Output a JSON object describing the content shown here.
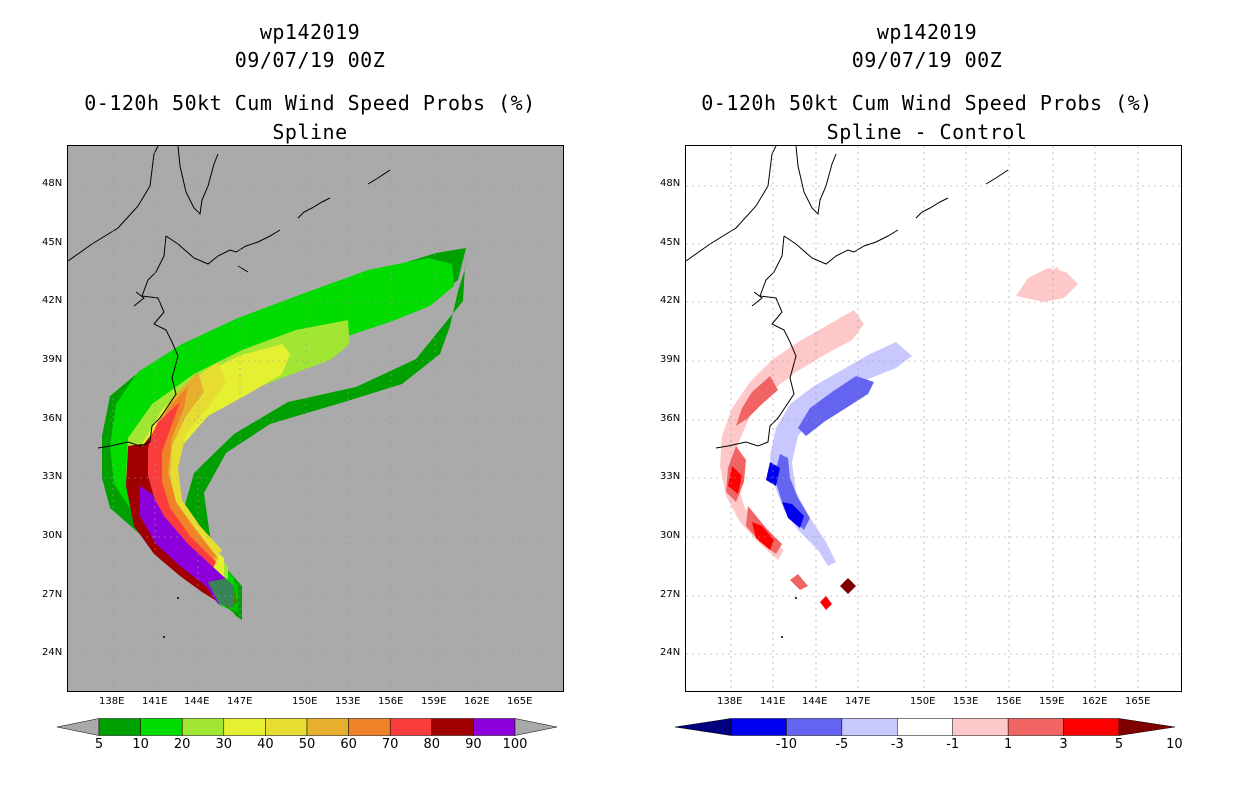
{
  "left_panel": {
    "title_lines": [
      "wp142019",
      "09/07/19 00Z",
      "0-120h 50kt Cum Wind Speed Probs (%)",
      "Spline"
    ],
    "colorbar": {
      "labels": [
        "5",
        "10",
        "20",
        "30",
        "40",
        "50",
        "60",
        "70",
        "80",
        "90",
        "100"
      ],
      "colors": [
        "#a9a9a9",
        "#00a000",
        "#00dc00",
        "#a0e632",
        "#e6f032",
        "#e6dc32",
        "#e6af2d",
        "#f08228",
        "#fa3c3c",
        "#a00000",
        "#8c00dc",
        "#a9a9a9"
      ]
    },
    "background_color": "#aaaaaa"
  },
  "right_panel": {
    "title_lines": [
      "wp142019",
      "09/07/19 00Z",
      "0-120h 50kt Cum Wind Speed Probs (%)",
      "Spline - Control"
    ],
    "colorbar": {
      "labels": [
        "-10",
        "-5",
        "-3",
        "-1",
        "1",
        "3",
        "5",
        "10"
      ],
      "colors": [
        "#000080",
        "#0000f0",
        "#6464f0",
        "#c8c8ff",
        "#ffffff",
        "#ffc8c8",
        "#f06464",
        "#ff0000",
        "#800000"
      ]
    },
    "background_color": "#ffffff"
  },
  "axes": {
    "lat_labels": [
      "48N",
      "45N",
      "42N",
      "39N",
      "36N",
      "33N",
      "30N",
      "27N",
      "24N"
    ],
    "lon_labels": [
      "138E",
      "141E",
      "144E",
      "147E",
      "150E",
      "153E",
      "156E",
      "159E",
      "162E",
      "165E"
    ]
  }
}
